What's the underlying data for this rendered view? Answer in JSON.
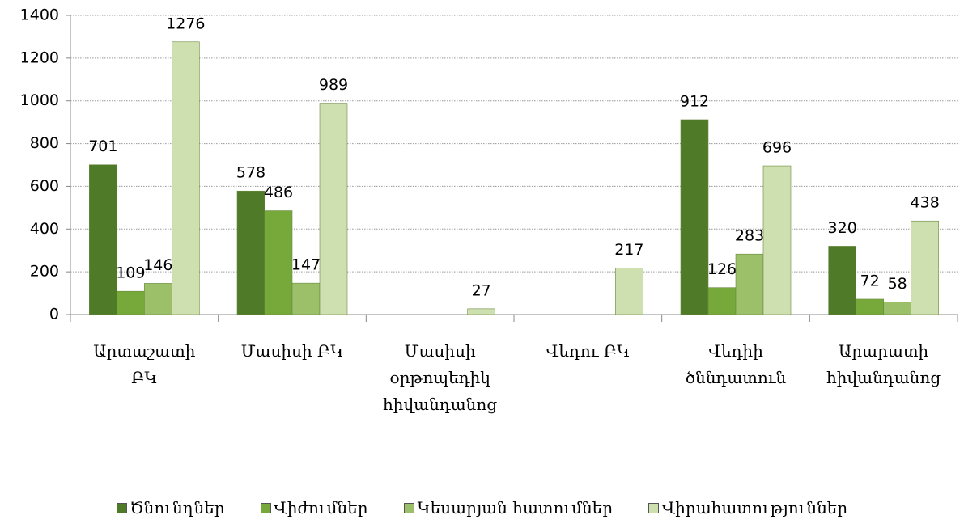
{
  "chart_data": {
    "type": "bar",
    "categories": [
      "Արտաշատի ԲԿ",
      "Մասիսի ԲԿ",
      "Մասիսի օրթոպեդիկ հիվանդանոց",
      "Վեդու ԲԿ",
      "Վեդիի ծննդատուն",
      "Արարատի հիվանդանոց"
    ],
    "series": [
      {
        "name": "Ծնունդներ",
        "color": "#4f7a28",
        "values": [
          701,
          578,
          null,
          null,
          912,
          320
        ]
      },
      {
        "name": "Վիժումներ",
        "color": "#76a83a",
        "values": [
          109,
          486,
          null,
          null,
          126,
          72
        ]
      },
      {
        "name": "Կեսարյան հատումներ",
        "color": "#9cbf6a",
        "values": [
          146,
          147,
          null,
          null,
          283,
          58
        ]
      },
      {
        "name": "Վիրահատություններ",
        "color": "#cfe0b0",
        "values": [
          1276,
          989,
          27,
          217,
          696,
          438
        ]
      }
    ],
    "ylim": [
      0,
      1400
    ],
    "yticks": [
      0,
      200,
      400,
      600,
      800,
      1000,
      1200,
      1400
    ],
    "grid": true,
    "legend": "bottom"
  }
}
